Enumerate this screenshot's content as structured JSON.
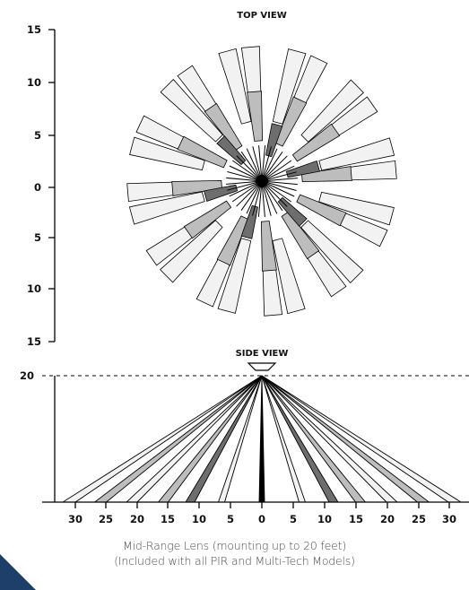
{
  "top_view": {
    "title": "TOP VIEW",
    "y_ticks": [
      "15",
      "10",
      "5",
      "0",
      "5",
      "10",
      "15"
    ]
  },
  "side_view": {
    "title": "SIDE VIEW",
    "mount_height_label": "20",
    "x_ticks": [
      "30",
      "25",
      "20",
      "15",
      "10",
      "5",
      "0",
      "5",
      "10",
      "15",
      "20",
      "25",
      "30"
    ]
  },
  "caption": {
    "line1": "Mid-Range Lens (mounting up to 20 feet)",
    "line2": "(Included with all PIR and Multi-Tech Models)"
  },
  "colors": {
    "zone_far": "#f2f2f2",
    "zone_mid": "#bdbdbd",
    "zone_near": "#6e6e6e",
    "zone_center": "#000000",
    "stroke": "#000000",
    "brand_corner": "#1f3f6b"
  }
}
